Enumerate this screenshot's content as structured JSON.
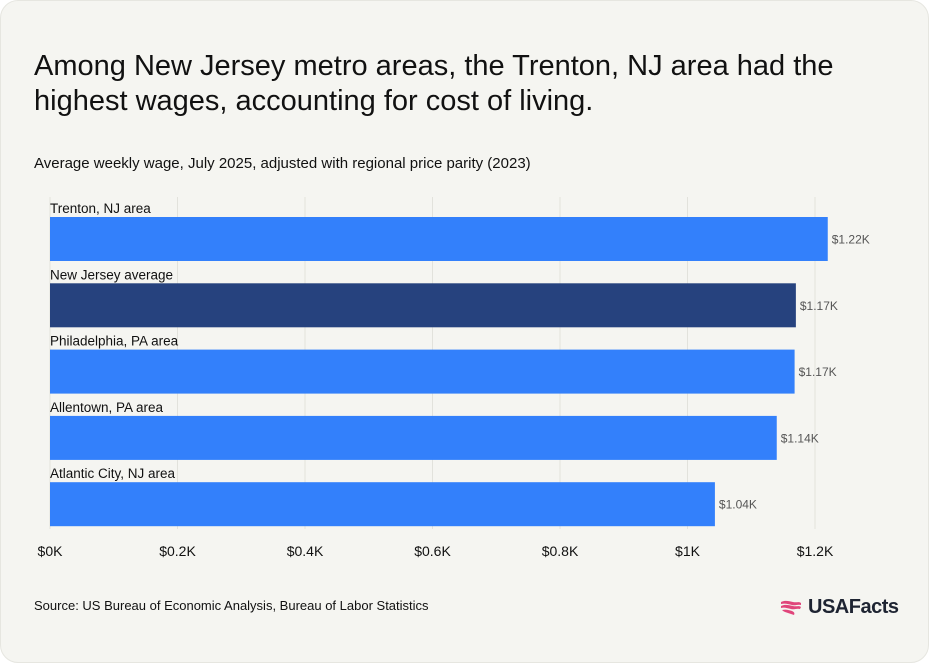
{
  "title": "Among New Jersey metro areas, the Trenton, NJ area had the highest wages, accounting for cost of living.",
  "subtitle": "Average weekly wage, July 2025, adjusted with regional price parity (2023)",
  "source": "Source: US Bureau of Economic Analysis, Bureau of Labor Statistics",
  "logo_text": "USAFacts",
  "logo_icon": "us-flag-map-icon",
  "colors": {
    "bar": "#3380fb",
    "highlight": "#26427e",
    "accent": "#e0457b"
  },
  "chart_data": {
    "type": "bar",
    "orientation": "horizontal",
    "title": "Average weekly wage, July 2025, adjusted with regional price parity (2023)",
    "categories": [
      "Trenton, NJ area",
      "New Jersey average",
      "Philadelphia, PA area",
      "Allentown, PA area",
      "Atlantic City, NJ area"
    ],
    "values": [
      1220,
      1170,
      1168,
      1140,
      1043
    ],
    "value_labels": [
      "$1.22K",
      "$1.17K",
      "$1.17K",
      "$1.14K",
      "$1.04K"
    ],
    "highlight_index": 1,
    "xlim": [
      0,
      1200
    ],
    "xticks": [
      0,
      200,
      400,
      600,
      800,
      1000,
      1200
    ],
    "xtick_labels": [
      "$0K",
      "$0.2K",
      "$0.4K",
      "$0.6K",
      "$0.8K",
      "$1K",
      "$1.2K"
    ],
    "xlabel": "",
    "ylabel": "",
    "grid": true,
    "legend": "none"
  }
}
